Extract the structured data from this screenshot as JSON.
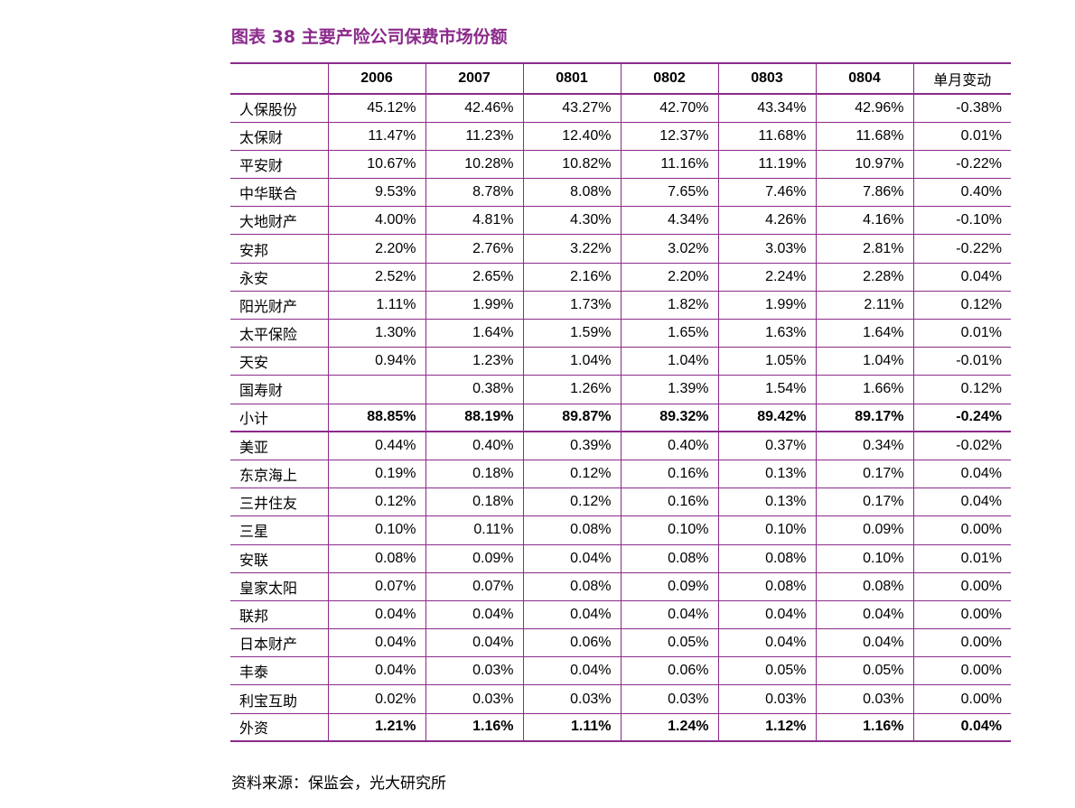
{
  "title": "图表 38  主要产险公司保费市场份额",
  "source": "资料来源：保监会，光大研究所",
  "colors": {
    "accent": "#8b2a8b"
  },
  "table": {
    "headers": [
      "",
      "2006",
      "2007",
      "0801",
      "0802",
      "0803",
      "0804",
      "单月变动"
    ],
    "rows": [
      [
        "人保股份",
        "45.12%",
        "42.46%",
        "43.27%",
        "42.70%",
        "43.34%",
        "42.96%",
        "-0.38%"
      ],
      [
        "太保财",
        "11.47%",
        "11.23%",
        "12.40%",
        "12.37%",
        "11.68%",
        "11.68%",
        "0.01%"
      ],
      [
        "平安财",
        "10.67%",
        "10.28%",
        "10.82%",
        "11.16%",
        "11.19%",
        "10.97%",
        "-0.22%"
      ],
      [
        "中华联合",
        "9.53%",
        "8.78%",
        "8.08%",
        "7.65%",
        "7.46%",
        "7.86%",
        "0.40%"
      ],
      [
        "大地财产",
        "4.00%",
        "4.81%",
        "4.30%",
        "4.34%",
        "4.26%",
        "4.16%",
        "-0.10%"
      ],
      [
        "安邦",
        "2.20%",
        "2.76%",
        "3.22%",
        "3.02%",
        "3.03%",
        "2.81%",
        "-0.22%"
      ],
      [
        "永安",
        "2.52%",
        "2.65%",
        "2.16%",
        "2.20%",
        "2.24%",
        "2.28%",
        "0.04%"
      ],
      [
        "阳光财产",
        "1.11%",
        "1.99%",
        "1.73%",
        "1.82%",
        "1.99%",
        "2.11%",
        "0.12%"
      ],
      [
        "太平保险",
        "1.30%",
        "1.64%",
        "1.59%",
        "1.65%",
        "1.63%",
        "1.64%",
        "0.01%"
      ],
      [
        "天安",
        "0.94%",
        "1.23%",
        "1.04%",
        "1.04%",
        "1.05%",
        "1.04%",
        "-0.01%"
      ],
      [
        "国寿财",
        "",
        "0.38%",
        "1.26%",
        "1.39%",
        "1.54%",
        "1.66%",
        "0.12%"
      ],
      [
        "小计",
        "88.85%",
        "88.19%",
        "89.87%",
        "89.32%",
        "89.42%",
        "89.17%",
        "-0.24%"
      ],
      [
        "美亚",
        "0.44%",
        "0.40%",
        "0.39%",
        "0.40%",
        "0.37%",
        "0.34%",
        "-0.02%"
      ],
      [
        "东京海上",
        "0.19%",
        "0.18%",
        "0.12%",
        "0.16%",
        "0.13%",
        "0.17%",
        "0.04%"
      ],
      [
        "三井住友",
        "0.12%",
        "0.18%",
        "0.12%",
        "0.16%",
        "0.13%",
        "0.17%",
        "0.04%"
      ],
      [
        "三星",
        "0.10%",
        "0.11%",
        "0.08%",
        "0.10%",
        "0.10%",
        "0.09%",
        "0.00%"
      ],
      [
        "安联",
        "0.08%",
        "0.09%",
        "0.04%",
        "0.08%",
        "0.08%",
        "0.10%",
        "0.01%"
      ],
      [
        "皇家太阳",
        "0.07%",
        "0.07%",
        "0.08%",
        "0.09%",
        "0.08%",
        "0.08%",
        "0.00%"
      ],
      [
        "联邦",
        "0.04%",
        "0.04%",
        "0.04%",
        "0.04%",
        "0.04%",
        "0.04%",
        "0.00%"
      ],
      [
        "日本财产",
        "0.04%",
        "0.04%",
        "0.06%",
        "0.05%",
        "0.04%",
        "0.04%",
        "0.00%"
      ],
      [
        "丰泰",
        "0.04%",
        "0.03%",
        "0.04%",
        "0.06%",
        "0.05%",
        "0.05%",
        "0.00%"
      ],
      [
        "利宝互助",
        "0.02%",
        "0.03%",
        "0.03%",
        "0.03%",
        "0.03%",
        "0.03%",
        "0.00%"
      ],
      [
        "外资",
        "1.21%",
        "1.16%",
        "1.11%",
        "1.24%",
        "1.12%",
        "1.16%",
        "0.04%"
      ]
    ]
  }
}
